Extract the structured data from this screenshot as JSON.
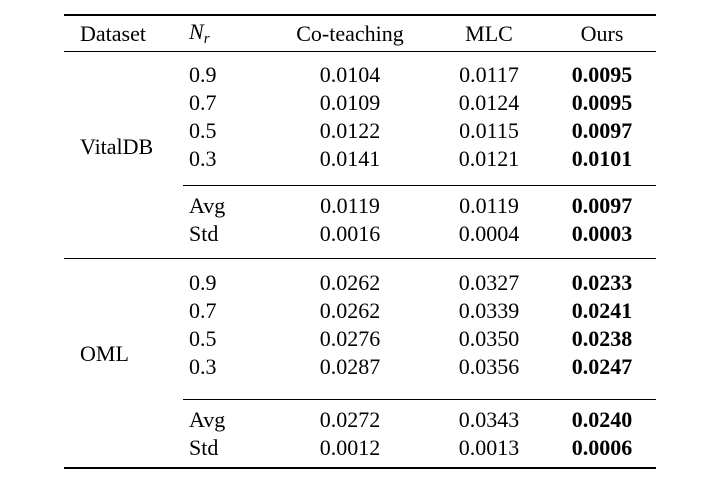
{
  "table": {
    "header": {
      "dataset": "Dataset",
      "nr_main": "N",
      "nr_sub": "r",
      "co_teaching": "Co-teaching",
      "mlc": "MLC",
      "ours": "Ours"
    },
    "sections": [
      {
        "dataset": "VitalDB",
        "rows": [
          {
            "nr": "0.9",
            "co_teaching": "0.0104",
            "mlc": "0.0117",
            "ours": "0.0095"
          },
          {
            "nr": "0.7",
            "co_teaching": "0.0109",
            "mlc": "0.0124",
            "ours": "0.0095"
          },
          {
            "nr": "0.5",
            "co_teaching": "0.0122",
            "mlc": "0.0115",
            "ours": "0.0097"
          },
          {
            "nr": "0.3",
            "co_teaching": "0.0141",
            "mlc": "0.0121",
            "ours": "0.0101"
          }
        ],
        "summary": [
          {
            "label": "Avg",
            "co_teaching": "0.0119",
            "mlc": "0.0119",
            "ours": "0.0097"
          },
          {
            "label": "Std",
            "co_teaching": "0.0016",
            "mlc": "0.0004",
            "ours": "0.0003"
          }
        ]
      },
      {
        "dataset": "OML",
        "rows": [
          {
            "nr": "0.9",
            "co_teaching": "0.0262",
            "mlc": "0.0327",
            "ours": "0.0233"
          },
          {
            "nr": "0.7",
            "co_teaching": "0.0262",
            "mlc": "0.0339",
            "ours": "0.0241"
          },
          {
            "nr": "0.5",
            "co_teaching": "0.0276",
            "mlc": "0.0350",
            "ours": "0.0238"
          },
          {
            "nr": "0.3",
            "co_teaching": "0.0287",
            "mlc": "0.0356",
            "ours": "0.0247"
          }
        ],
        "summary": [
          {
            "label": "Avg",
            "co_teaching": "0.0272",
            "mlc": "0.0343",
            "ours": "0.0240"
          },
          {
            "label": "Std",
            "co_teaching": "0.0012",
            "mlc": "0.0013",
            "ours": "0.0006"
          }
        ]
      }
    ]
  }
}
